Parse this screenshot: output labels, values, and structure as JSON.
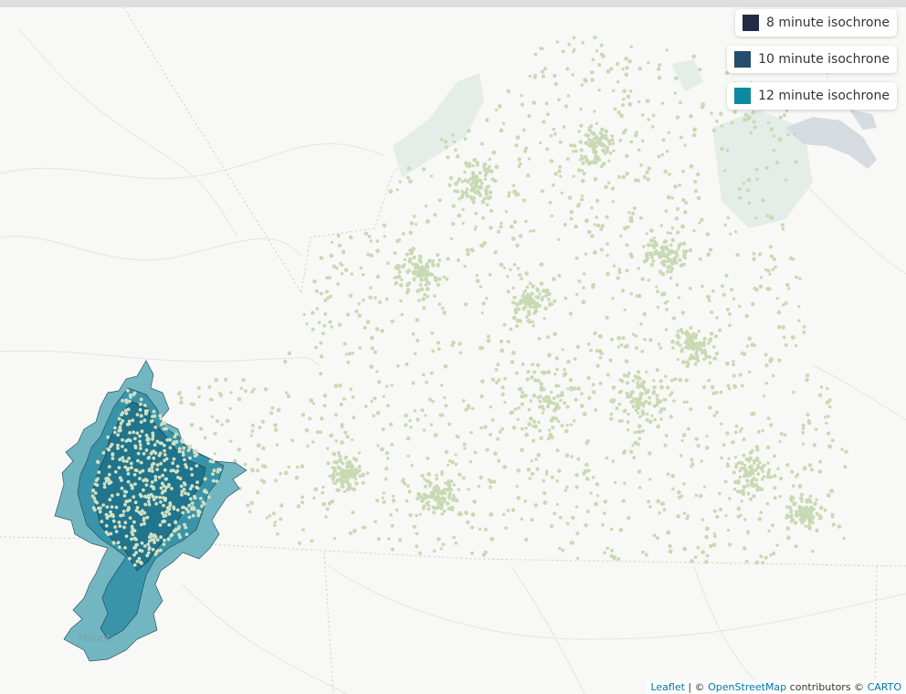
{
  "legend": [
    {
      "label": "8 minute isochrone",
      "color": "#222b48"
    },
    {
      "label": "10 minute isochrone",
      "color": "#244c6c"
    },
    {
      "label": "12 minute isochrone",
      "color": "#0e8aa0"
    }
  ],
  "map_labels": {
    "town": "Mount"
  },
  "attribution": {
    "leaflet": "Leaflet",
    "sep": " | © ",
    "osm": "OpenStreetMap",
    "contrib": " contributors © ",
    "carto": "CARTO"
  },
  "colors": {
    "points": "#c9d9b4",
    "iso12": "#5aaab8",
    "iso10": "#2f8ea4",
    "iso8": "#1c6f86",
    "water": "#d5dbe0",
    "park": "#e3ece6"
  }
}
